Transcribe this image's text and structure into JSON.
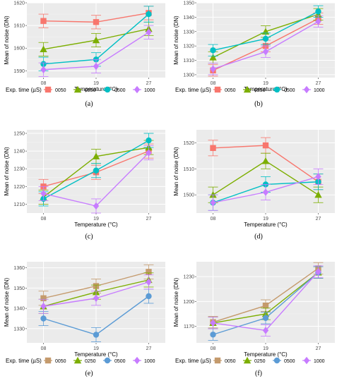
{
  "figure": {
    "xlabel": "Temperature (°C)",
    "ylabel": "Mean of noise (DN)",
    "legend_title": "Exp. time (µS)"
  },
  "chart_data": [
    {
      "type": "line",
      "caption": "(a)",
      "ylim": [
        1587,
        1620
      ],
      "yticks": [
        1590,
        1600,
        1610,
        1620
      ],
      "categories": [
        "08",
        "19",
        "27"
      ],
      "series": [
        {
          "name": "0050",
          "values": [
            1612,
            1611.5,
            1615.5
          ],
          "err": [
            3,
            3,
            3
          ]
        },
        {
          "name": "0250",
          "values": [
            1599.5,
            1603.5,
            1608.5
          ],
          "err": [
            3,
            3,
            3
          ]
        },
        {
          "name": "0500",
          "values": [
            1593,
            1595,
            1615
          ],
          "err": [
            3,
            3,
            3.5
          ]
        },
        {
          "name": "1000",
          "values": [
            1590.5,
            1592,
            1607
          ],
          "err": [
            3,
            3,
            3
          ]
        }
      ]
    },
    {
      "type": "line",
      "caption": "(b)",
      "ylim": [
        1298,
        1350
      ],
      "yticks": [
        1300,
        1310,
        1320,
        1330,
        1340,
        1350
      ],
      "categories": [
        "08",
        "19",
        "27"
      ],
      "series": [
        {
          "name": "0050",
          "values": [
            1303,
            1320,
            1339
          ],
          "err": [
            4,
            4,
            4
          ]
        },
        {
          "name": "0250",
          "values": [
            1312,
            1330,
            1342
          ],
          "err": [
            4,
            4,
            4
          ]
        },
        {
          "name": "0500",
          "values": [
            1317,
            1325,
            1344
          ],
          "err": [
            4,
            4,
            4
          ]
        },
        {
          "name": "1000",
          "values": [
            1304,
            1316,
            1337
          ],
          "err": [
            4,
            4,
            4
          ]
        }
      ]
    },
    {
      "type": "line",
      "caption": "(c)",
      "ylim": [
        1205,
        1252
      ],
      "yticks": [
        1210,
        1220,
        1230,
        1240,
        1250
      ],
      "categories": [
        "08",
        "19",
        "27"
      ],
      "series": [
        {
          "name": "0050",
          "values": [
            1220,
            1228,
            1240
          ],
          "err": [
            4,
            4,
            4
          ]
        },
        {
          "name": "0250",
          "values": [
            1214,
            1237,
            1242
          ],
          "err": [
            4,
            4,
            4
          ]
        },
        {
          "name": "0500",
          "values": [
            1213,
            1229,
            1246
          ],
          "err": [
            4,
            4,
            4
          ]
        },
        {
          "name": "1000",
          "values": [
            1216,
            1209,
            1239
          ],
          "err": [
            4,
            4,
            4
          ]
        }
      ]
    },
    {
      "type": "line",
      "caption": "(d)",
      "ylim": [
        1493,
        1525
      ],
      "yticks": [
        1500,
        1510,
        1520
      ],
      "categories": [
        "08",
        "19",
        "27"
      ],
      "series": [
        {
          "name": "0050",
          "values": [
            1518,
            1519,
            1505
          ],
          "err": [
            3,
            3,
            3
          ]
        },
        {
          "name": "0250",
          "values": [
            1500,
            1513,
            1500
          ],
          "err": [
            3,
            3,
            3
          ]
        },
        {
          "name": "0500",
          "values": [
            1497,
            1504,
            1505
          ],
          "err": [
            3,
            3,
            3
          ]
        },
        {
          "name": "1000",
          "values": [
            1497,
            1501,
            1507
          ],
          "err": [
            3,
            3,
            3
          ]
        }
      ]
    },
    {
      "type": "line",
      "caption": "(e)",
      "ylim": [
        1323,
        1363
      ],
      "yticks": [
        1330,
        1340,
        1350,
        1360
      ],
      "categories": [
        "08",
        "19",
        "27"
      ],
      "series": [
        {
          "name": "0050",
          "values": [
            1345,
            1351,
            1358
          ],
          "err": [
            3.5,
            3.5,
            3.5
          ]
        },
        {
          "name": "0250",
          "values": [
            1341,
            1348,
            1354
          ],
          "err": [
            3.5,
            3.5,
            3.5
          ]
        },
        {
          "name": "0500",
          "values": [
            1335,
            1327,
            1346
          ],
          "err": [
            3.5,
            3.5,
            3.5
          ]
        },
        {
          "name": "1000",
          "values": [
            1341,
            1345,
            1353
          ],
          "err": [
            3.5,
            3.5,
            3.5
          ]
        }
      ]
    },
    {
      "type": "line",
      "caption": "(f)",
      "ylim": [
        1150,
        1248
      ],
      "yticks": [
        1170,
        1200,
        1230
      ],
      "categories": [
        "08",
        "19",
        "27"
      ],
      "series": [
        {
          "name": "0050",
          "values": [
            1175,
            1195,
            1240
          ],
          "err": [
            7,
            7,
            7
          ]
        },
        {
          "name": "0250",
          "values": [
            1174,
            1185,
            1235
          ],
          "err": [
            7,
            7,
            7
          ]
        },
        {
          "name": "0500",
          "values": [
            1160,
            1180,
            1235
          ],
          "err": [
            7,
            7,
            7
          ]
        },
        {
          "name": "1000",
          "values": [
            1174,
            1165,
            1236
          ],
          "err": [
            7,
            7,
            7
          ]
        }
      ]
    }
  ],
  "colors": {
    "top": [
      "#f8766d",
      "#7cae00",
      "#00bfc4",
      "#c77cff"
    ],
    "bottom": [
      "#c49a6c",
      "#7cae00",
      "#5b9bd5",
      "#c77cff"
    ],
    "panel_bg": "#ebebeb",
    "grid": "#ffffff"
  }
}
